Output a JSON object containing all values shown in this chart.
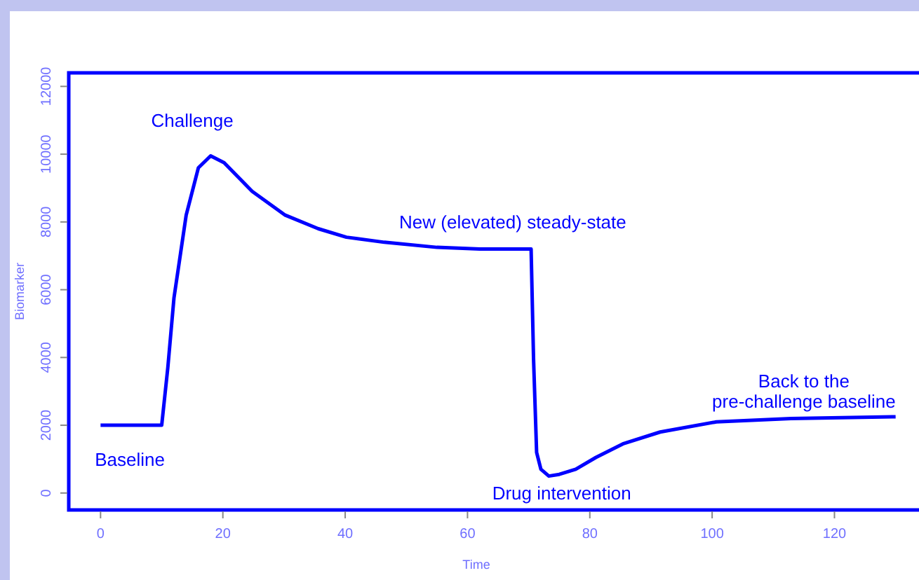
{
  "chart_data": {
    "type": "line",
    "xlabel": "Time",
    "ylabel": "Biomarker",
    "xlim": [
      -5.2,
      135.2
    ],
    "ylim": [
      -500,
      12400
    ],
    "xticks": [
      0,
      20,
      40,
      60,
      80,
      100,
      120
    ],
    "yticks": [
      0,
      2000,
      4000,
      6000,
      8000,
      10000,
      12000
    ],
    "grid": false,
    "marker": "none",
    "line_style": "solid",
    "series": [
      {
        "color": "#0000ff",
        "x": [
          0,
          10,
          11,
          12,
          14,
          16,
          18,
          20.2,
          24.8,
          30.2,
          35.6,
          40.2,
          46.4,
          55,
          62,
          70,
          70.4,
          70.8,
          71.3,
          72,
          73.3,
          75,
          77.7,
          81,
          85.4,
          91.5,
          100.7,
          112.9,
          130
        ],
        "values": [
          2000,
          2000,
          3700,
          5750,
          8200,
          9600,
          9950,
          9750,
          8900,
          8200,
          7800,
          7550,
          7400,
          7250,
          7200,
          7200,
          7200,
          3950,
          1200,
          700,
          500,
          550,
          700,
          1050,
          1450,
          1800,
          2100,
          2200,
          2250
        ]
      }
    ],
    "annotations": [
      "Challenge",
      "New (elevated) steady-state",
      "Baseline",
      "Drug intervention",
      "Back to the\npre-challenge baseline"
    ]
  }
}
